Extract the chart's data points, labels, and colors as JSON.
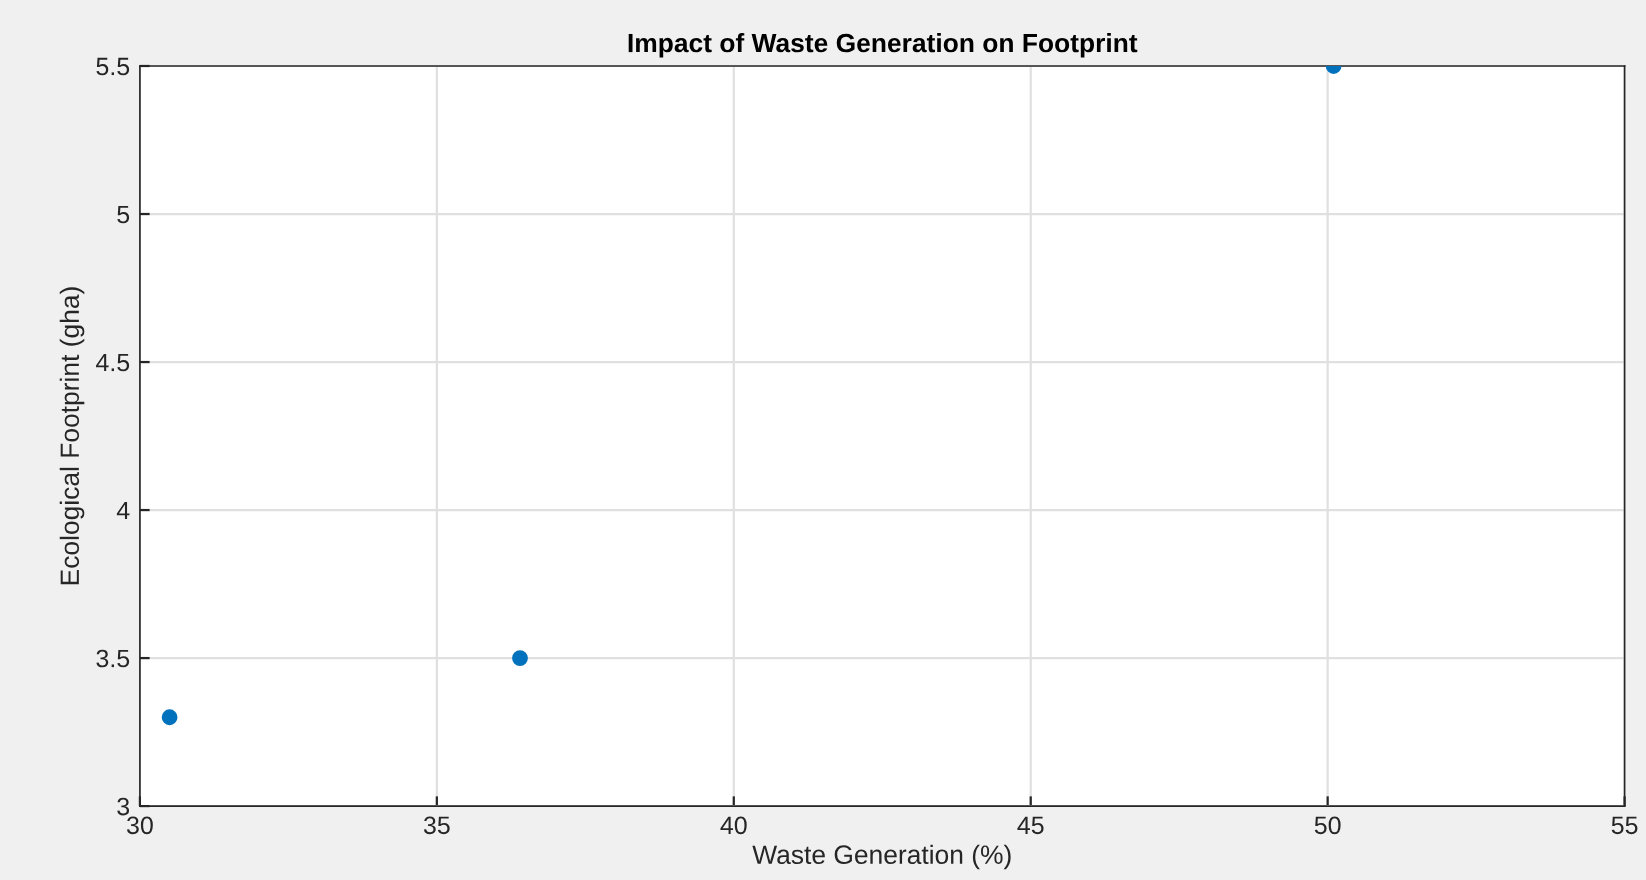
{
  "chart_data": {
    "type": "scatter",
    "title": "Impact of Waste Generation on Footprint",
    "xlabel": "Waste Generation (%)",
    "ylabel": "Ecological Footprint (gha)",
    "x": [
      30.5,
      36.4,
      50.1
    ],
    "series": [
      {
        "color": "#0072bd",
        "values": [
          3.3,
          3.5,
          5.5
        ]
      }
    ],
    "xlim": [
      30,
      55
    ],
    "xticks": [
      30,
      35,
      40,
      45,
      50,
      55
    ],
    "ylim": [
      3,
      5.5
    ],
    "yticks": [
      3,
      3.5,
      4,
      4.5,
      5,
      5.5
    ],
    "grid": true,
    "marker": "circle"
  }
}
